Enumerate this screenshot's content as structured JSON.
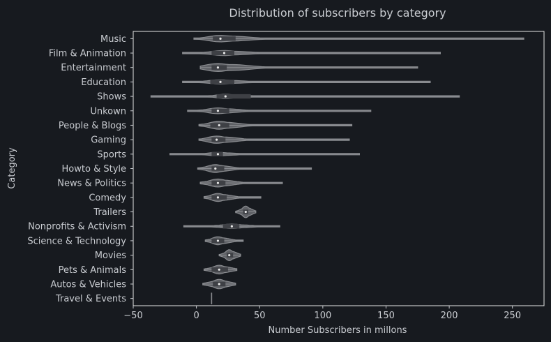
{
  "chart_data": {
    "type": "violin",
    "orientation": "horizontal",
    "title": "Distribution of subscribers by category",
    "xlabel": "Number Subscribers in millons",
    "ylabel": "Category",
    "xlim": [
      -50,
      275
    ],
    "xticks": [
      -50,
      0,
      50,
      100,
      150,
      200,
      250
    ],
    "grid": false,
    "legend": "none",
    "colors": {
      "background": "#171a1f",
      "text": "#c9ccd1",
      "violin_fill": "#5f6166",
      "violin_edge": "#8a8c90",
      "box": "#3e4045",
      "median": "#e8e8e8"
    },
    "categories": [
      {
        "name": "Music",
        "min": -2,
        "q1": 13,
        "median": 19,
        "q3": 31,
        "max": 259,
        "width": 0.45,
        "core": [
          5,
          50
        ]
      },
      {
        "name": "Film & Animation",
        "min": -11,
        "q1": 12,
        "median": 22,
        "q3": 30,
        "max": 193,
        "width": 0.35,
        "core": [
          2,
          50
        ]
      },
      {
        "name": "Entertainment",
        "min": 3,
        "q1": 12,
        "median": 17,
        "q3": 24,
        "max": 175,
        "width": 0.55,
        "core": [
          4,
          50
        ]
      },
      {
        "name": "Education",
        "min": -11,
        "q1": 11,
        "median": 19,
        "q3": 30,
        "max": 185,
        "width": 0.3,
        "core": [
          0,
          45
        ]
      },
      {
        "name": "Shows",
        "min": -36,
        "q1": 16,
        "median": 23,
        "q3": 43,
        "max": 208,
        "width": 0.3,
        "core": [
          10,
          45
        ]
      },
      {
        "name": "Unkown",
        "min": -7,
        "q1": 12,
        "median": 17,
        "q3": 26,
        "max": 138,
        "width": 0.4,
        "core": [
          2,
          40
        ]
      },
      {
        "name": "People & Blogs",
        "min": 2,
        "q1": 11,
        "median": 18,
        "q3": 26,
        "max": 123,
        "width": 0.55,
        "core": [
          4,
          40
        ]
      },
      {
        "name": "Gaming",
        "min": 2,
        "q1": 12,
        "median": 16,
        "q3": 23,
        "max": 121,
        "width": 0.5,
        "core": [
          4,
          38
        ]
      },
      {
        "name": "Sports",
        "min": -21,
        "q1": 12,
        "median": 17,
        "q3": 21,
        "max": 129,
        "width": 0.25,
        "core": [
          2,
          38
        ]
      },
      {
        "name": "Howto & Style",
        "min": 1,
        "q1": 12,
        "median": 15,
        "q3": 22,
        "max": 91,
        "width": 0.55,
        "core": [
          3,
          32
        ]
      },
      {
        "name": "News & Politics",
        "min": 3,
        "q1": 12,
        "median": 17,
        "q3": 23,
        "max": 68,
        "width": 0.55,
        "core": [
          4,
          35
        ]
      },
      {
        "name": "Comedy",
        "min": 6,
        "q1": 12,
        "median": 17,
        "q3": 24,
        "max": 51,
        "width": 0.55,
        "core": [
          7,
          32
        ]
      },
      {
        "name": "Trailers",
        "min": 31,
        "q1": 37,
        "median": 39,
        "q3": 41,
        "max": 47,
        "width": 0.8,
        "core": [
          33,
          46
        ]
      },
      {
        "name": "Nonprofits & Activism",
        "min": -10,
        "q1": 21,
        "median": 28,
        "q3": 34,
        "max": 66,
        "width": 0.3,
        "core": [
          10,
          50
        ]
      },
      {
        "name": "Science & Technology",
        "min": 7,
        "q1": 12,
        "median": 17,
        "q3": 22,
        "max": 37,
        "width": 0.55,
        "core": [
          8,
          30
        ]
      },
      {
        "name": "Movies",
        "min": 18,
        "q1": 24,
        "median": 26,
        "q3": 29,
        "max": 35,
        "width": 0.75,
        "core": [
          20,
          34
        ]
      },
      {
        "name": "Pets & Animals",
        "min": 6,
        "q1": 12,
        "median": 18,
        "q3": 25,
        "max": 32,
        "width": 0.6,
        "core": [
          8,
          31
        ]
      },
      {
        "name": "Autos & Vehicles",
        "min": 5,
        "q1": 13,
        "median": 18,
        "q3": 23,
        "max": 31,
        "width": 0.65,
        "core": [
          7,
          30
        ]
      },
      {
        "name": "Travel & Events",
        "min": 12,
        "q1": 12,
        "median": 12,
        "q3": 12,
        "max": 12,
        "width": 0.8,
        "core": [
          12,
          12
        ]
      }
    ]
  }
}
